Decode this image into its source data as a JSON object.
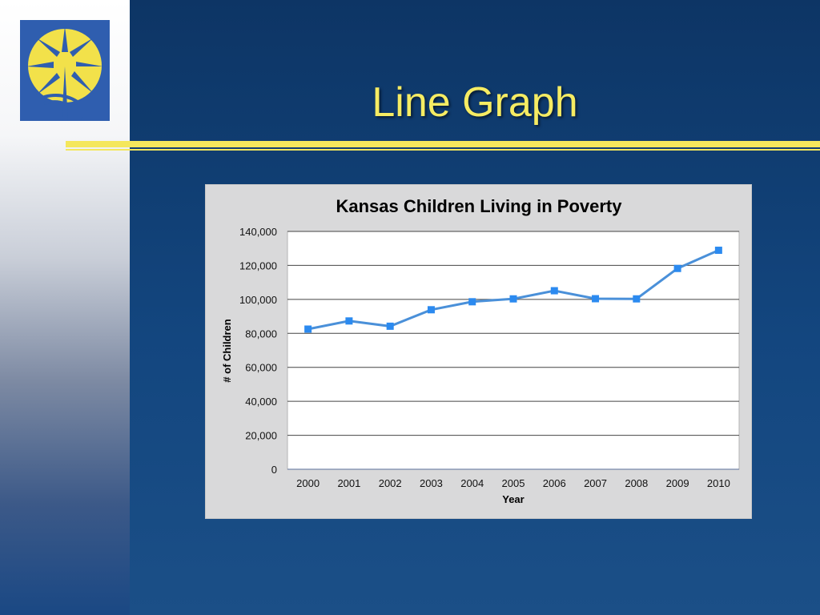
{
  "slide": {
    "title": "Line Graph",
    "colors": {
      "title": "#f6ec63",
      "rule": "#f4e75c",
      "background_top": "#0d3565",
      "background_bottom": "#1b4f87",
      "logo_background": "#2f5eaf",
      "logo_star": "#f2e14a"
    },
    "logo_icon": "sunburst-star-logo"
  },
  "chart_data": {
    "type": "line",
    "title": "Kansas Children Living in Poverty",
    "xlabel": "Year",
    "ylabel": "# of Children",
    "categories": [
      "2000",
      "2001",
      "2002",
      "2003",
      "2004",
      "2005",
      "2006",
      "2007",
      "2008",
      "2009",
      "2010"
    ],
    "series": [
      {
        "values": [
          82500,
          87300,
          84200,
          93900,
          98600,
          100300,
          105100,
          100400,
          100300,
          118200,
          128900
        ]
      }
    ],
    "ylim": [
      0,
      140000
    ],
    "yticks": [
      0,
      20000,
      40000,
      60000,
      80000,
      100000,
      120000,
      140000
    ],
    "ytick_labels": [
      "0",
      "20,000",
      "40,000",
      "60,000",
      "80,000",
      "100,000",
      "120,000",
      "140,000"
    ],
    "grid": true,
    "legend": "none",
    "colors": {
      "line": "#4a90d9",
      "marker": "#2b8af0",
      "plot_background": "#ffffff",
      "chart_background": "#d9d9da"
    }
  }
}
